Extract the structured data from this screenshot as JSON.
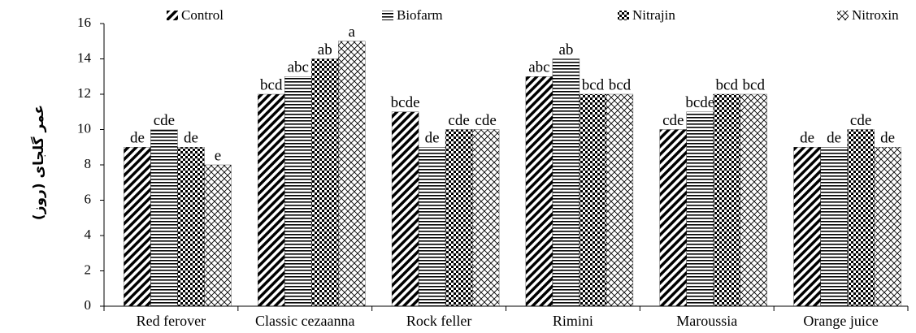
{
  "chart_data": {
    "type": "bar",
    "y_label": "عمر گلجای (روز)",
    "categories": [
      "Red ferover",
      "Classic cezaanna",
      "Rock feller",
      "Rimini",
      "Maroussia",
      "Orange juice"
    ],
    "series": [
      {
        "name": "Control",
        "color": "#000000",
        "pattern": "diagonal",
        "values": [
          9,
          12,
          11,
          13,
          10,
          9
        ],
        "annotations": [
          "de",
          "bcd",
          "bcde",
          "abc",
          "cde",
          "de"
        ]
      },
      {
        "name": "Biofarm",
        "color": "#000000",
        "pattern": "horizontal",
        "values": [
          10,
          13,
          9,
          14,
          11,
          9
        ],
        "annotations": [
          "cde",
          "abc",
          "de",
          "ab",
          "bcde",
          "de"
        ]
      },
      {
        "name": "Nitrajin",
        "color": "#000000",
        "pattern": "checker",
        "values": [
          9,
          14,
          10,
          12,
          12,
          10
        ],
        "annotations": [
          "de",
          "ab",
          "cde",
          "bcd",
          "bcd",
          "cde"
        ]
      },
      {
        "name": "Nitroxin",
        "color": "#000000",
        "pattern": "crosshatch",
        "values": [
          8,
          15,
          10,
          12,
          12,
          9
        ],
        "annotations": [
          "e",
          "a",
          "cde",
          "bcd",
          "bcd",
          "de"
        ]
      }
    ],
    "ylim": [
      0,
      16
    ],
    "yticks": [
      0,
      2,
      4,
      6,
      8,
      10,
      12,
      14,
      16
    ],
    "legend": "top"
  }
}
